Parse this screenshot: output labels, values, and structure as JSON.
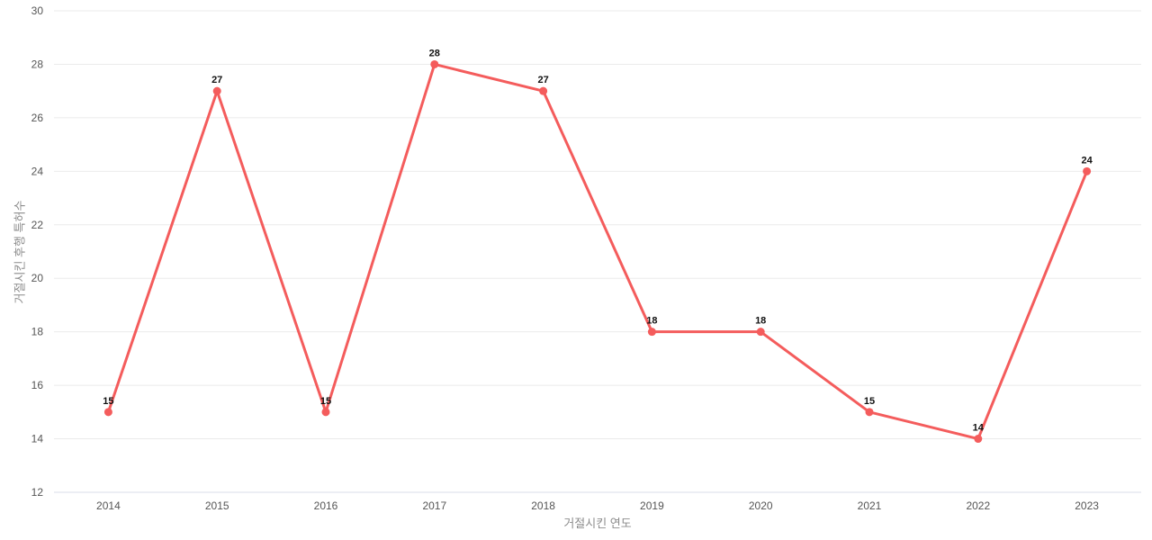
{
  "chart_data": {
    "type": "line",
    "title": "",
    "xlabel": "거절시킨 연도",
    "ylabel": "거절시킨 후행 특허수",
    "categories": [
      "2014",
      "2015",
      "2016",
      "2017",
      "2018",
      "2019",
      "2020",
      "2021",
      "2022",
      "2023"
    ],
    "series": [
      {
        "name": "거절시킨 후행 특허수",
        "values": [
          15,
          27,
          15,
          28,
          27,
          18,
          18,
          15,
          14,
          24
        ]
      }
    ],
    "point_labels": [
      "15",
      "27",
      "15",
      "28",
      "27",
      "18",
      "18",
      "15",
      "14",
      "24"
    ],
    "yticks": [
      12,
      14,
      16,
      18,
      20,
      22,
      24,
      26,
      28,
      30
    ],
    "ylim": [
      12,
      30
    ],
    "grid": "horizontal-only",
    "legend": "none",
    "colors": {
      "line": "#f45c5c",
      "marker": "#f45c5c",
      "gridline": "#ebebeb",
      "baseline": "#d8dee8",
      "tick_text": "#555555",
      "axis_title_text": "#8c8c8c",
      "point_label_text": "#111111",
      "background": "#ffffff"
    }
  }
}
